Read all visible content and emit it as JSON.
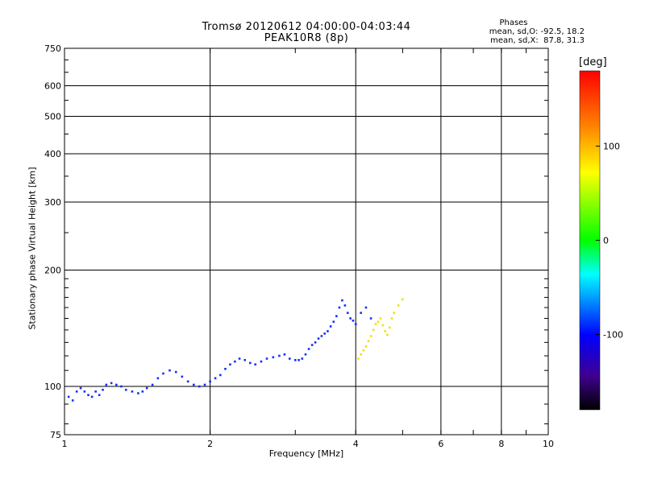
{
  "header": {
    "title": "Tromsø 20120612 04:00:00-04:03:44",
    "subtitle": "PEAK10R8 (8p)"
  },
  "stats": {
    "heading": "Phases",
    "line_o": "mean, sd,O: -92.5, 18.2",
    "line_x": "mean, sd,X:  87.8, 31.3"
  },
  "chart_data": {
    "type": "scatter",
    "title": "Tromsø 20120612 04:00:00-04:03:44",
    "subtitle": "PEAK10R8 (8p)",
    "xlabel": "Frequency [MHz]",
    "ylabel": "Stationary phase Virtual Height [km]",
    "x_scale": "log",
    "y_scale": "log",
    "xlim": [
      1,
      10
    ],
    "ylim": [
      75,
      750
    ],
    "x_ticks": [
      1,
      2,
      4,
      6,
      8,
      10
    ],
    "x_minor_ticks": [
      3,
      5,
      7,
      9
    ],
    "y_ticks": [
      75,
      100,
      200,
      300,
      400,
      500,
      600,
      750
    ],
    "grid": true,
    "colorbar": {
      "label": "[deg]",
      "range": [
        -180,
        180
      ],
      "ticks": [
        100,
        0,
        -100
      ],
      "colors": [
        "#ff0000",
        "#ff8000",
        "#ffff00",
        "#00ff00",
        "#00ffff",
        "#0000ff",
        "#3000a0",
        "#000000"
      ]
    },
    "series": [
      {
        "mode": "O",
        "phase_deg": -92.5,
        "color": "#1530ff",
        "points": [
          [
            1.02,
            94
          ],
          [
            1.04,
            92
          ],
          [
            1.06,
            97
          ],
          [
            1.08,
            99
          ],
          [
            1.1,
            97
          ],
          [
            1.12,
            95
          ],
          [
            1.14,
            94
          ],
          [
            1.16,
            97
          ],
          [
            1.18,
            95
          ],
          [
            1.2,
            98
          ],
          [
            1.22,
            101
          ],
          [
            1.25,
            102
          ],
          [
            1.28,
            101
          ],
          [
            1.31,
            100
          ],
          [
            1.34,
            98
          ],
          [
            1.38,
            97
          ],
          [
            1.42,
            96
          ],
          [
            1.45,
            97
          ],
          [
            1.48,
            99
          ],
          [
            1.52,
            101
          ],
          [
            1.56,
            105
          ],
          [
            1.6,
            108
          ],
          [
            1.65,
            110
          ],
          [
            1.7,
            109
          ],
          [
            1.75,
            106
          ],
          [
            1.8,
            103
          ],
          [
            1.85,
            101
          ],
          [
            1.9,
            100
          ],
          [
            1.95,
            101
          ],
          [
            2.0,
            103
          ],
          [
            2.05,
            105
          ],
          [
            2.1,
            107
          ],
          [
            2.15,
            111
          ],
          [
            2.2,
            114
          ],
          [
            2.25,
            116
          ],
          [
            2.3,
            118
          ],
          [
            2.36,
            117
          ],
          [
            2.42,
            115
          ],
          [
            2.48,
            114
          ],
          [
            2.55,
            116
          ],
          [
            2.62,
            118
          ],
          [
            2.7,
            119
          ],
          [
            2.78,
            120
          ],
          [
            2.85,
            121
          ],
          [
            2.92,
            118
          ],
          [
            3.0,
            117
          ],
          [
            3.05,
            117
          ],
          [
            3.1,
            118
          ],
          [
            3.15,
            121
          ],
          [
            3.2,
            125
          ],
          [
            3.25,
            128
          ],
          [
            3.3,
            130
          ],
          [
            3.35,
            133
          ],
          [
            3.4,
            135
          ],
          [
            3.45,
            137
          ],
          [
            3.5,
            139
          ],
          [
            3.55,
            143
          ],
          [
            3.6,
            147
          ],
          [
            3.65,
            152
          ],
          [
            3.7,
            160
          ],
          [
            3.75,
            167
          ],
          [
            3.8,
            162
          ],
          [
            3.85,
            155
          ],
          [
            3.9,
            150
          ],
          [
            3.95,
            148
          ],
          [
            4.0,
            145
          ],
          [
            4.1,
            155
          ],
          [
            4.2,
            160
          ],
          [
            4.3,
            150
          ]
        ]
      },
      {
        "mode": "X",
        "phase_deg": 87.8,
        "color": "#f0e010",
        "points": [
          [
            4.05,
            118
          ],
          [
            4.1,
            121
          ],
          [
            4.15,
            124
          ],
          [
            4.2,
            127
          ],
          [
            4.25,
            131
          ],
          [
            4.3,
            135
          ],
          [
            4.35,
            140
          ],
          [
            4.4,
            145
          ],
          [
            4.45,
            147
          ],
          [
            4.5,
            150
          ],
          [
            4.55,
            144
          ],
          [
            4.6,
            139
          ],
          [
            4.65,
            136
          ],
          [
            4.7,
            142
          ],
          [
            4.75,
            150
          ],
          [
            4.8,
            155
          ],
          [
            4.9,
            162
          ],
          [
            5.0,
            168
          ]
        ]
      }
    ]
  }
}
